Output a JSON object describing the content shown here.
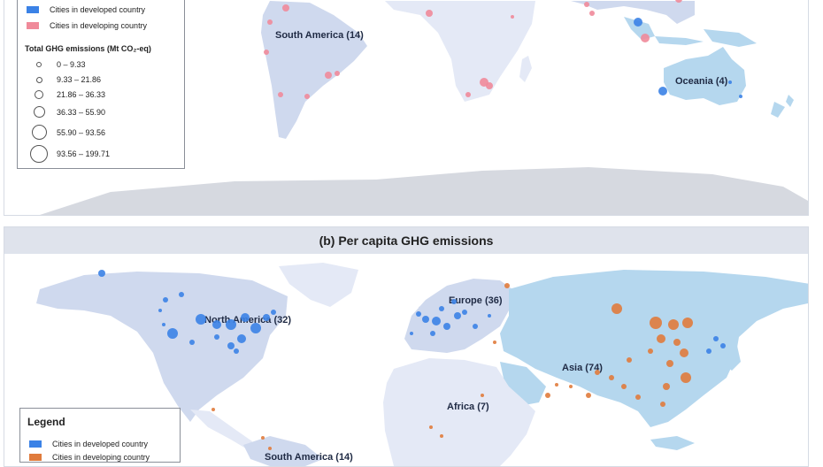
{
  "colors": {
    "developed": "#3b82e6",
    "developing_a": "#f08a9a",
    "developing_b": "#e07b3c",
    "land_light": "#e4e9f6",
    "land_dark": "#cfd9ee",
    "highlight_land": "#b5d7ee",
    "antarctica": "#d6d9e0"
  },
  "panel_a": {
    "regions": {
      "south_america": "South America (14)",
      "oceania": "Oceania (4)"
    },
    "legend": {
      "developed_label": "Cities in developed country",
      "developing_label": "Cities in developing country",
      "size_title": "Total GHG emissions (Mt CO₂-eq)",
      "size_classes": [
        "0 – 9.33",
        "9.33 – 21.86",
        "21.86 – 36.33",
        "36.33 – 55.90",
        "55.90 – 93.56",
        "93.56 – 199.71"
      ]
    }
  },
  "panel_b": {
    "title": "(b) Per capita GHG emissions",
    "regions": {
      "north_america": "North America (32)",
      "europe": "Europe (36)",
      "asia": "Asia (74)",
      "africa": "Africa (7)",
      "south_america": "South America (14)"
    },
    "legend": {
      "title": "Legend",
      "developed_label": "Cities in developed country",
      "developing_label": "Cities in developing country"
    }
  }
}
